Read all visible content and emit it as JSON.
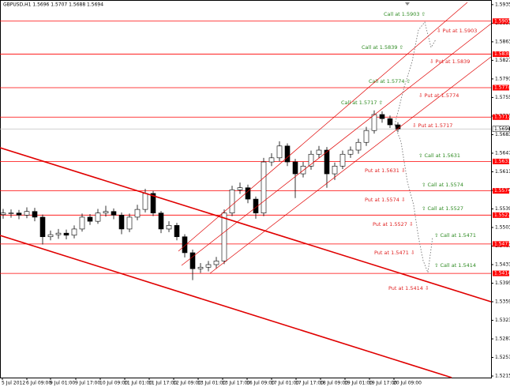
{
  "chart_data": {
    "type": "candlestick",
    "title": "GBPUSD,H1  1.5696 1.5707 1.5688 1.5694",
    "ylim": [
      1.5212,
      1.5944
    ],
    "yticks": [
      1.5215,
      1.5251,
      1.5287,
      1.5323,
      1.5359,
      1.5395,
      1.5431,
      1.5467,
      1.5503,
      1.5539,
      1.5575,
      1.5611,
      1.5647,
      1.5683,
      1.5719,
      1.5755,
      1.5791,
      1.5827,
      1.5863,
      1.5899,
      1.5935
    ],
    "x_labels": [
      "5 Jul 2012",
      "6 Jul 09:00",
      "9 Jul 01:00",
      "9 Jul 17:00",
      "10 Jul 09:00",
      "11 Jul 01:00",
      "11 Jul 17:00",
      "12 Jul 09:00",
      "13 Jul 01:00",
      "13 Jul 17:00",
      "16 Jul 09:00",
      "17 Jul 01:00",
      "17 Jul 17:00",
      "18 Jul 09:00",
      "19 Jul 01:00",
      "19 Jul 17:00",
      "20 Jul 09:00"
    ],
    "open": [
      1.5528,
      1.5531,
      1.5531,
      1.5527,
      1.5534,
      1.5523,
      1.5485,
      1.5489,
      1.5492,
      1.5488,
      1.55,
      1.5523,
      1.5515,
      1.5531,
      1.5534,
      1.5527,
      1.55,
      1.5523,
      1.5538,
      1.5569,
      1.5531,
      1.55,
      1.5507,
      1.5485,
      1.5454,
      1.5423,
      1.5426,
      1.5431,
      1.5438,
      1.5531,
      1.5576,
      1.558,
      1.5558,
      1.5531,
      1.563,
      1.5638,
      1.5661,
      1.563,
      1.5607,
      1.5622,
      1.5645,
      1.5653,
      1.5607,
      1.5622,
      1.5645,
      1.5653,
      1.5668,
      1.5691,
      1.5722,
      1.5714,
      1.5702
    ],
    "high": [
      1.5539,
      1.5538,
      1.5537,
      1.5542,
      1.5541,
      1.5528,
      1.5497,
      1.55,
      1.5499,
      1.5507,
      1.553,
      1.5529,
      1.5539,
      1.5545,
      1.554,
      1.5532,
      1.553,
      1.5547,
      1.5578,
      1.5574,
      1.5535,
      1.5515,
      1.5512,
      1.549,
      1.546,
      1.5434,
      1.5438,
      1.5446,
      1.5538,
      1.5584,
      1.559,
      1.5586,
      1.5563,
      1.5638,
      1.5647,
      1.567,
      1.5666,
      1.5636,
      1.563,
      1.5652,
      1.5661,
      1.5659,
      1.5629,
      1.5652,
      1.566,
      1.5675,
      1.5698,
      1.573,
      1.5728,
      1.572,
      1.5707
    ],
    "low": [
      1.552,
      1.5522,
      1.5519,
      1.5521,
      1.5515,
      1.547,
      1.5478,
      1.5481,
      1.548,
      1.5482,
      1.5495,
      1.5508,
      1.551,
      1.5524,
      1.5519,
      1.549,
      1.5494,
      1.5517,
      1.5532,
      1.5525,
      1.5492,
      1.5494,
      1.5478,
      1.5445,
      1.5401,
      1.5415,
      1.5418,
      1.5424,
      1.5432,
      1.5525,
      1.5568,
      1.555,
      1.552,
      1.5525,
      1.5622,
      1.5631,
      1.5622,
      1.556,
      1.56,
      1.5615,
      1.5638,
      1.558,
      1.5595,
      1.5616,
      1.5638,
      1.5646,
      1.5661,
      1.5685,
      1.5706,
      1.5696,
      1.5688
    ],
    "close": [
      1.5531,
      1.5531,
      1.5527,
      1.5534,
      1.5523,
      1.5485,
      1.5489,
      1.5492,
      1.5488,
      1.55,
      1.5523,
      1.5515,
      1.5531,
      1.5534,
      1.5527,
      1.55,
      1.5523,
      1.5538,
      1.5569,
      1.5531,
      1.55,
      1.5507,
      1.5485,
      1.5454,
      1.5423,
      1.5426,
      1.5431,
      1.5438,
      1.5531,
      1.5576,
      1.558,
      1.5558,
      1.5531,
      1.563,
      1.5638,
      1.5661,
      1.563,
      1.5607,
      1.5622,
      1.5645,
      1.5653,
      1.5607,
      1.5622,
      1.5645,
      1.5653,
      1.5668,
      1.5691,
      1.5722,
      1.5714,
      1.5702,
      1.5694
    ],
    "levels": [
      1.5903,
      1.5839,
      1.5774,
      1.5717,
      1.5631,
      1.5574,
      1.5527,
      1.5471,
      1.5414
    ],
    "level_color": "#ff0000",
    "last_price": 1.5694,
    "annotations": [
      {
        "text": "Call at 1.5903 ⇧",
        "color": "#2e8b22"
      },
      {
        "text": "⇩ Put at 1.5903",
        "color": "#e02020"
      },
      {
        "text": "Call at 1.5839 ⇧",
        "color": "#2e8b22"
      },
      {
        "text": "⇩ Put at 1.5839",
        "color": "#e02020"
      },
      {
        "text": "Call at 1.5774 ⇧",
        "color": "#2e8b22"
      },
      {
        "text": "⇩ Put at 1.5774",
        "color": "#e02020"
      },
      {
        "text": "Call at 1.5717 ⇧",
        "color": "#2e8b22"
      },
      {
        "text": "⇩ Put at 1.5717",
        "color": "#e02020"
      },
      {
        "text": "⇧ Call at 1.5631",
        "color": "#2e8b22"
      },
      {
        "text": "Put at 1.5631 ⇩",
        "color": "#e02020"
      },
      {
        "text": "⇧ Call at 1.5574",
        "color": "#2e8b22"
      },
      {
        "text": "Put at 1.5574 ⇩",
        "color": "#e02020"
      },
      {
        "text": "⇧ Call at 1.5527",
        "color": "#2e8b22"
      },
      {
        "text": "Put at 1.5527 ⇩",
        "color": "#e02020"
      },
      {
        "text": "⇧ Call at 1.5471",
        "color": "#2e8b22"
      },
      {
        "text": "Put at 1.5471 ⇩",
        "color": "#e02020"
      },
      {
        "text": "⇧ Call at 1.5414",
        "color": "#2e8b22"
      },
      {
        "text": "Put at 1.5414 ⇩",
        "color": "#e02020"
      }
    ]
  }
}
